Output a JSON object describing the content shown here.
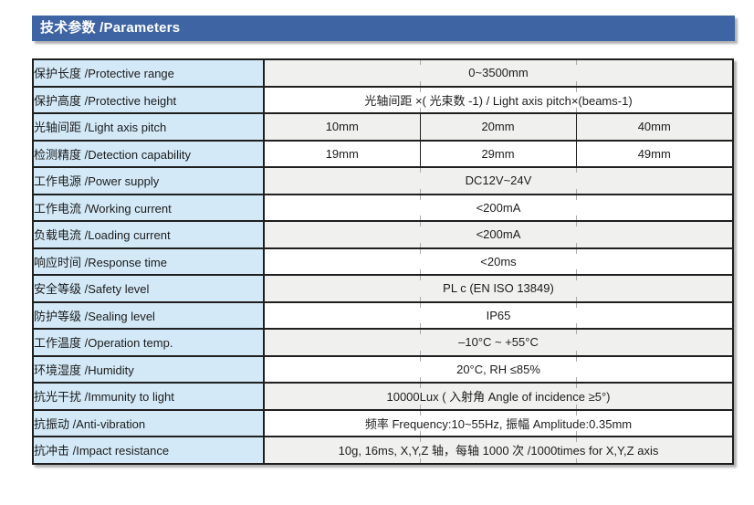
{
  "header": {
    "title": "技术参数 /Parameters"
  },
  "colors": {
    "header_bg": "#3e64a3",
    "header_text": "#ffffff",
    "label_cell_bg": "#d3e9f7",
    "value_cell_bg": "#ffffff",
    "value_cell_alt_bg": "#f0f0ef",
    "border": "#1f1f1f"
  },
  "table": {
    "rows": [
      {
        "label": "保护长度 /Protective range",
        "values": [
          "0~3500mm"
        ],
        "shaded": true
      },
      {
        "label": "保护高度 /Protective height",
        "values": [
          "光轴间距 ×( 光束数 -1) / Light axis pitch×(beams-1)"
        ],
        "shaded": false
      },
      {
        "label": "光轴间距 /Light axis pitch",
        "values": [
          "10mm",
          "20mm",
          "40mm"
        ],
        "shaded": true
      },
      {
        "label": "检测精度 /Detection capability",
        "values": [
          "19mm",
          "29mm",
          "49mm"
        ],
        "shaded": false
      },
      {
        "label": "工作电源 /Power supply",
        "values": [
          "DC12V~24V"
        ],
        "shaded": true
      },
      {
        "label": "工作电流 /Working current",
        "values": [
          "<200mA"
        ],
        "shaded": false
      },
      {
        "label": "负载电流 /Loading current",
        "values": [
          "<200mA"
        ],
        "shaded": true
      },
      {
        "label": "响应时间 /Response time",
        "values": [
          "<20ms"
        ],
        "shaded": false
      },
      {
        "label": "安全等级 /Safety level",
        "values": [
          "PL c (EN ISO 13849)"
        ],
        "shaded": true
      },
      {
        "label": "防护等级 /Sealing level",
        "values": [
          "IP65"
        ],
        "shaded": false
      },
      {
        "label": "工作温度 /Operation temp.",
        "values": [
          "–10°C ~ +55°C"
        ],
        "shaded": true
      },
      {
        "label": "环境湿度 /Humidity",
        "values": [
          "20°C, RH ≤85%"
        ],
        "shaded": false
      },
      {
        "label": "抗光干扰 /Immunity to light",
        "values": [
          "10000Lux ( 入射角 Angle of incidence ≥5°)"
        ],
        "shaded": true
      },
      {
        "label": "抗振动 /Anti-vibration",
        "values": [
          "频率 Frequency:10~55Hz, 振幅 Amplitude:0.35mm"
        ],
        "shaded": false
      },
      {
        "label": "抗冲击 /Impact resistance",
        "values": [
          "10g, 16ms, X,Y,Z 轴，每轴 1000 次 /1000times for X,Y,Z axis"
        ],
        "shaded": true
      }
    ]
  }
}
